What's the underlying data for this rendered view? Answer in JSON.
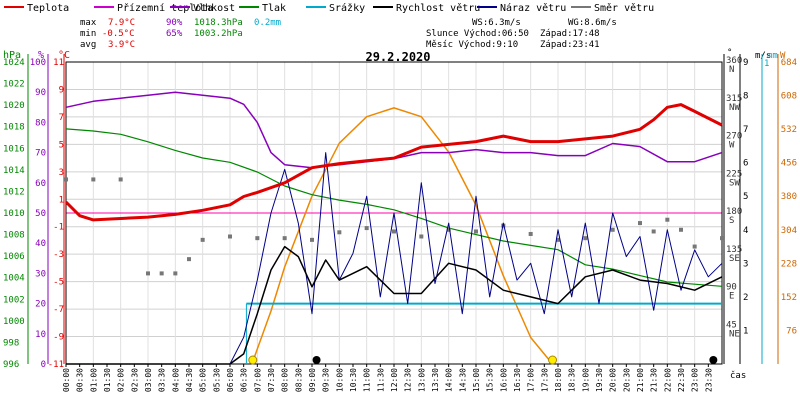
{
  "chart_data": {
    "type": "line",
    "title": "29.2.2020",
    "legend": [
      {
        "name": "Teplota",
        "color": "#e00000"
      },
      {
        "name": "Přízemní teplota",
        "color": "#cc00cc"
      },
      {
        "name": "Vlhkost",
        "color": "#8800bb"
      },
      {
        "name": "Tlak",
        "color": "#008800"
      },
      {
        "name": "Srážky",
        "color": "#00aacc"
      },
      {
        "name": "Rychlost větru",
        "color": "#000000"
      },
      {
        "name": "Náraz větru",
        "color": "#000088"
      },
      {
        "name": "Směr větru",
        "color": "#777777"
      }
    ],
    "stats": {
      "rows": [
        {
          "label": "max",
          "temp": "7.9°C",
          "hum": "90%",
          "press": "1018.3hPa",
          "rain": "0.2mm"
        },
        {
          "label": "min",
          "temp": "-0.5°C",
          "hum": "65%",
          "press": "1003.2hPa",
          "rain": ""
        },
        {
          "label": "avg",
          "temp": "3.9°C",
          "hum": "",
          "press": "",
          "rain": ""
        }
      ],
      "ws": "WS:6.3m/s",
      "wg": "WG:8.6m/s",
      "sun": "Slunce Východ:06:50",
      "sun_set": "Západ:17:48",
      "moon": "Měsíc  Východ:9:10",
      "moon_set": "Západ:23:41"
    },
    "axes": {
      "pressure": {
        "unit": "hPa",
        "ticks": [
          "1024",
          "1022",
          "1020",
          "1018",
          "1016",
          "1014",
          "1012",
          "1010",
          "1008",
          "1006",
          "1004",
          "1002",
          "1000",
          "998",
          "996"
        ]
      },
      "humidity": {
        "unit": "%",
        "ticks": [
          "100",
          "90",
          "80",
          "70",
          "60",
          "50",
          "40",
          "30",
          "20",
          "10",
          "0"
        ]
      },
      "temperature": {
        "unit": "°C",
        "ticks": [
          "11",
          "9",
          "7",
          "5",
          "3",
          "1",
          "-1",
          "-3",
          "-5",
          "-7",
          "-9",
          "-11"
        ]
      },
      "direction": {
        "unit": "°",
        "ticks": [
          {
            "deg": "360",
            "dir": "N"
          },
          {
            "deg": "315",
            "dir": "NW"
          },
          {
            "deg": "270",
            "dir": "W"
          },
          {
            "deg": "225",
            "dir": "SW"
          },
          {
            "deg": "180",
            "dir": "S"
          },
          {
            "deg": "135",
            "dir": "SE"
          },
          {
            "deg": "90",
            "dir": "E"
          },
          {
            "deg": "45",
            "dir": "NE"
          }
        ]
      },
      "wind": {
        "unit": "m/s",
        "ticks": [
          "9",
          "8",
          "7",
          "6",
          "5",
          "4",
          "3",
          "2",
          "1"
        ]
      },
      "rain": {
        "unit": "mm",
        "top": "1"
      },
      "solar": {
        "unit": "W",
        "ticks": [
          "684",
          "608",
          "532",
          "456",
          "380",
          "304",
          "228",
          "152",
          "76"
        ]
      },
      "time_label": "čas",
      "xticks": [
        "00:00",
        "00:30",
        "01:00",
        "01:30",
        "02:00",
        "02:30",
        "03:00",
        "03:30",
        "04:00",
        "04:30",
        "05:00",
        "05:30",
        "06:00",
        "06:30",
        "07:00",
        "07:30",
        "08:00",
        "08:30",
        "09:00",
        "09:30",
        "10:00",
        "10:30",
        "11:00",
        "11:30",
        "12:00",
        "12:30",
        "13:00",
        "13:30",
        "14:00",
        "14:30",
        "15:00",
        "15:30",
        "16:00",
        "16:30",
        "17:00",
        "17:30",
        "18:00",
        "18:30",
        "19:00",
        "19:30",
        "20:00",
        "20:30",
        "21:00",
        "21:30",
        "22:00",
        "22:30",
        "23:00",
        "23:30"
      ]
    },
    "x_range_hours": [
      0,
      24
    ],
    "temperature": {
      "x": [
        0,
        0.5,
        1,
        2,
        3,
        4,
        5,
        6,
        6.5,
        7,
        8,
        9,
        10,
        11,
        12,
        13,
        14,
        15,
        16,
        17,
        18,
        19,
        20,
        21,
        21.5,
        22,
        22.5,
        23,
        24
      ],
      "y": [
        0.8,
        -0.2,
        -0.5,
        -0.4,
        -0.3,
        -0.1,
        0.2,
        0.6,
        1.2,
        1.5,
        2.2,
        3.3,
        3.6,
        3.8,
        4,
        4.8,
        5,
        5.2,
        5.6,
        5.2,
        5.2,
        5.4,
        5.6,
        6.1,
        6.8,
        7.7,
        7.9,
        7.4,
        6.4
      ]
    },
    "humidity": {
      "x": [
        0,
        1,
        2,
        3,
        4,
        5,
        6,
        6.5,
        7,
        7.5,
        8,
        9,
        10,
        11,
        12,
        13,
        14,
        15,
        16,
        17,
        18,
        19,
        20,
        21,
        22,
        23,
        24
      ],
      "y": [
        85,
        87,
        88,
        89,
        90,
        89,
        88,
        86,
        80,
        70,
        66,
        65,
        66,
        67,
        68,
        70,
        70,
        71,
        70,
        70,
        69,
        69,
        73,
        72,
        67,
        67,
        70
      ]
    },
    "pressure": {
      "x": [
        0,
        1,
        2,
        3,
        4,
        5,
        6,
        7,
        8,
        9,
        10,
        11,
        12,
        13,
        14,
        15,
        16,
        17,
        18,
        19,
        20,
        21,
        22,
        23,
        24
      ],
      "y": [
        1017.8,
        1017.6,
        1017.3,
        1016.6,
        1015.8,
        1015.1,
        1014.7,
        1013.8,
        1012.5,
        1011.7,
        1011.2,
        1010.8,
        1010.3,
        1009.5,
        1008.6,
        1008,
        1007.4,
        1007,
        1006.6,
        1005.2,
        1004.8,
        1004.2,
        1003.6,
        1003.4,
        1003.2
      ]
    },
    "rain": {
      "start_hour": 6.6,
      "level_mm": 0.2
    },
    "wind_speed": {
      "x": [
        0,
        6,
        6.5,
        7,
        7.5,
        8,
        8.5,
        9,
        9.5,
        10,
        11,
        12,
        13,
        14,
        15,
        16,
        17,
        18,
        18.5,
        19,
        20,
        21,
        22,
        23,
        24
      ],
      "y": [
        0,
        0,
        0.3,
        1.5,
        2.8,
        3.5,
        3.2,
        2.3,
        3.1,
        2.5,
        2.9,
        2.1,
        2.1,
        3,
        2.8,
        2.2,
        2.0,
        1.8,
        2.2,
        2.6,
        2.8,
        2.5,
        2.4,
        2.2,
        2.6
      ]
    },
    "wind_gust": {
      "x": [
        0,
        6,
        6.5,
        7,
        7.5,
        8,
        8.5,
        9,
        9.5,
        10,
        10.5,
        11,
        11.5,
        12,
        12.5,
        13,
        13.5,
        14,
        14.5,
        15,
        15.5,
        16,
        16.5,
        17,
        17.5,
        18,
        18.5,
        19,
        19.5,
        20,
        20.5,
        21,
        21.5,
        22,
        22.5,
        23,
        23.5,
        24
      ],
      "y": [
        0,
        0,
        0.8,
        2.5,
        4.5,
        5.8,
        4.2,
        1.5,
        6.3,
        2.5,
        3.3,
        5.0,
        2.0,
        4.5,
        1.8,
        5.4,
        2.4,
        4.2,
        1.5,
        5.0,
        2.0,
        4.2,
        2.5,
        3.0,
        1.5,
        4.0,
        2.0,
        4.2,
        1.8,
        4.5,
        3.2,
        3.8,
        1.6,
        4.0,
        2.2,
        3.4,
        2.6,
        3.0
      ]
    },
    "wind_direction": {
      "x": [
        0,
        1,
        2,
        3,
        3.5,
        4,
        4.5,
        5,
        6,
        7,
        8,
        9,
        10,
        11,
        12,
        13,
        14,
        15,
        16,
        17,
        18,
        19,
        20,
        21,
        21.5,
        22,
        22.5,
        23,
        24
      ],
      "y": [
        220,
        220,
        220,
        108,
        108,
        108,
        125,
        148,
        152,
        150,
        150,
        148,
        157,
        162,
        158,
        152,
        160,
        158,
        165,
        155,
        148,
        150,
        160,
        168,
        158,
        172,
        160,
        140,
        150
      ]
    },
    "solar_radiation": {
      "x": [
        6.8,
        7.5,
        8,
        9,
        10,
        11,
        12,
        13,
        14,
        15,
        16,
        17,
        17.8
      ],
      "y": [
        0,
        120,
        220,
        380,
        500,
        560,
        580,
        560,
        480,
        360,
        200,
        60,
        0
      ]
    }
  }
}
